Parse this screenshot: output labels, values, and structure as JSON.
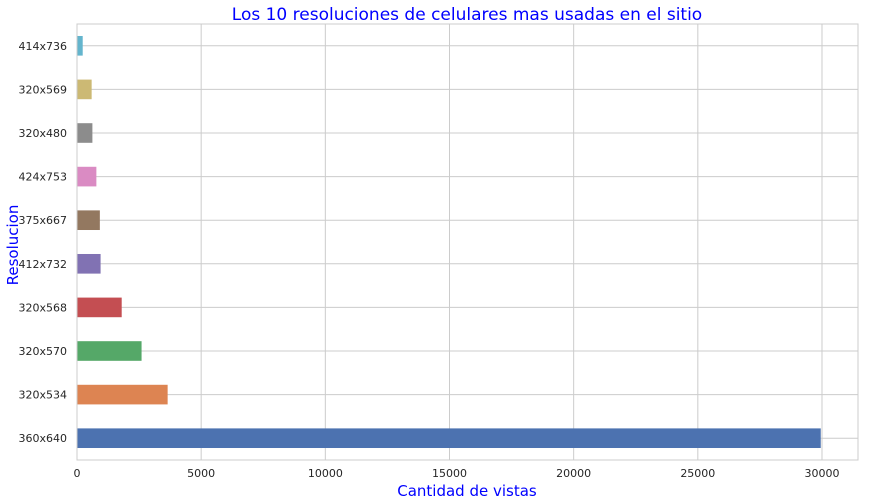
{
  "chart_data": {
    "type": "bar",
    "orientation": "horizontal",
    "title": "Los 10 resoluciones de celulares mas usadas en el sitio",
    "xlabel": "Cantidad de vistas",
    "ylabel": "Resolucion",
    "categories": [
      "360x640",
      "320x534",
      "320x570",
      "320x568",
      "412x732",
      "375x667",
      "424x753",
      "320x480",
      "320x569",
      "414x736"
    ],
    "values": [
      29950,
      3650,
      2600,
      1800,
      950,
      920,
      780,
      620,
      590,
      230
    ],
    "colors": [
      "#4c72b0",
      "#dd8452",
      "#55a868",
      "#c44e52",
      "#8172b3",
      "#937860",
      "#da8bc3",
      "#8c8c8c",
      "#ccb974",
      "#64b5cd"
    ],
    "xlim": [
      0,
      31450
    ],
    "xticks": [
      0,
      5000,
      10000,
      15000,
      20000,
      25000,
      30000
    ],
    "grid": true,
    "title_color": "#0000ff",
    "label_color": "#0000ff"
  }
}
